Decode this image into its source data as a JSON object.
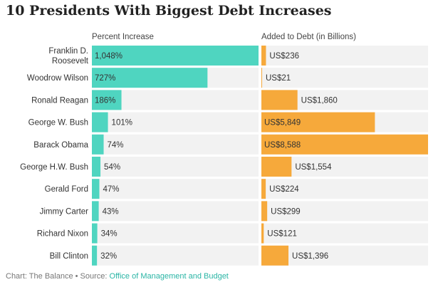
{
  "chart": {
    "title": "10 Presidents With Biggest Debt Increases",
    "footer_prefix": "Chart: The Balance • Source: ",
    "footer_source": "Office of Management and Budget"
  },
  "colors": {
    "percent_bar": "#4fd5c0",
    "debt_bar": "#f6a93b",
    "track": "#f2f2f2"
  },
  "chart_data": {
    "type": "bar",
    "orientation": "horizontal",
    "categories": [
      "Franklin D. Roosevelt",
      "Woodrow Wilson",
      "Ronald Reagan",
      "George W. Bush",
      "Barack Obama",
      "George H.W. Bush",
      "Gerald Ford",
      "Jimmy Carter",
      "Richard Nixon",
      "Bill Clinton"
    ],
    "category_lines": [
      [
        "Franklin D.",
        "Roosevelt"
      ],
      [
        "Woodrow Wilson"
      ],
      [
        "Ronald Reagan"
      ],
      [
        "George W. Bush"
      ],
      [
        "Barack Obama"
      ],
      [
        "George H.W. Bush"
      ],
      [
        "Gerald Ford"
      ],
      [
        "Jimmy Carter"
      ],
      [
        "Richard Nixon"
      ],
      [
        "Bill Clinton"
      ]
    ],
    "series": [
      {
        "name": "Percent Increase",
        "values": [
          1048,
          727,
          186,
          101,
          74,
          54,
          47,
          43,
          34,
          32
        ],
        "labels": [
          "1,048%",
          "727%",
          "186%",
          "101%",
          "74%",
          "54%",
          "47%",
          "43%",
          "34%",
          "32%"
        ],
        "xlim": [
          0,
          1048
        ]
      },
      {
        "name": "Added to Debt (in Billions)",
        "values": [
          236,
          21,
          1860,
          5849,
          8588,
          1554,
          224,
          299,
          121,
          1396
        ],
        "labels": [
          "US$236",
          "US$21",
          "US$1,860",
          "US$5,849",
          "US$8,588",
          "US$1,554",
          "US$224",
          "US$299",
          "US$121",
          "US$1,396"
        ],
        "xlim": [
          0,
          8588
        ]
      }
    ],
    "grid": false,
    "legend": "none"
  }
}
